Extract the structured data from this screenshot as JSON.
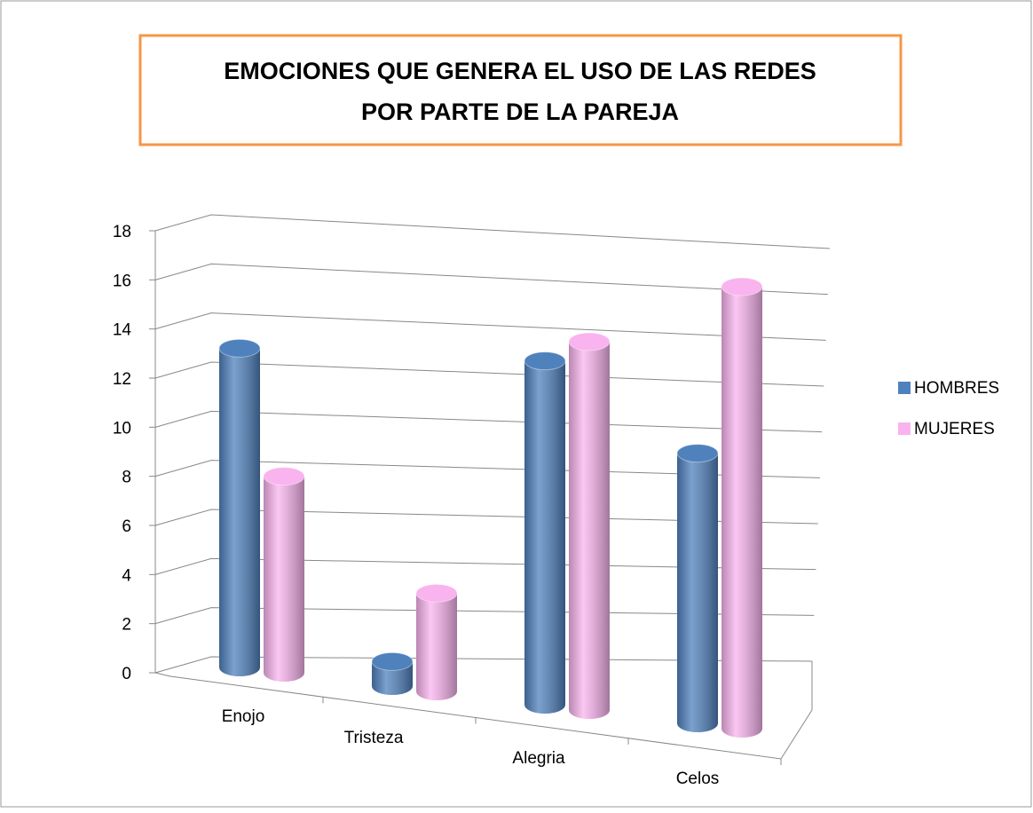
{
  "chart_data": {
    "type": "bar3d",
    "title_lines": [
      "EMOCIONES QUE GENERA EL USO DE LAS REDES",
      "POR PARTE DE LA PAREJA"
    ],
    "categories": [
      "Enojo",
      "Tristeza",
      "Alegria",
      "Celos"
    ],
    "series": [
      {
        "name": "HOMBRES",
        "color": "#4f81bd",
        "values": [
          13,
          1,
          14,
          11
        ]
      },
      {
        "name": "MUJERES",
        "color": "#f9b3ee",
        "values": [
          8,
          4,
          15,
          18
        ]
      }
    ],
    "ylim": [
      0,
      18
    ],
    "yticks": [
      0,
      2,
      4,
      6,
      8,
      10,
      12,
      14,
      16,
      18
    ],
    "grid": true,
    "legend": "right"
  }
}
